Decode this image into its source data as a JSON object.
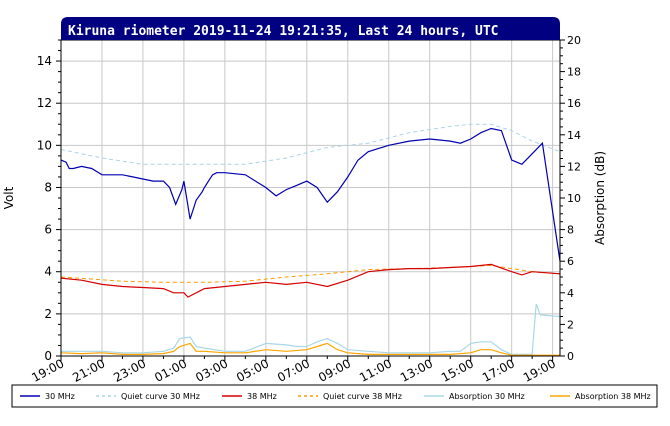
{
  "colors": {
    "title_bar": "#000080",
    "s30": "#0000b0",
    "q30": "#aad4e6",
    "s38": "#d40000",
    "q38": "#ff9900",
    "a30": "#a8d8e8",
    "a38": "#ffa500",
    "grid": "#c8c8c8"
  },
  "chart_data": {
    "type": "line",
    "title": "Kiruna riometer 2019-11-24 19:21:35, Last 24 hours, UTC",
    "ylabel": "Volt",
    "y2label": "Absorption (dB)",
    "ylim": [
      0,
      15
    ],
    "y2lim": [
      0,
      20
    ],
    "y_ticks": [
      "0",
      "2",
      "4",
      "6",
      "8",
      "10",
      "12",
      "14"
    ],
    "y2_ticks": [
      "0",
      "2",
      "4",
      "6",
      "8",
      "10",
      "12",
      "14",
      "16",
      "18",
      "20"
    ],
    "x_ticks": [
      "19:00",
      "21:00",
      "23:00",
      "01:00",
      "03:00",
      "05:00",
      "07:00",
      "09:00",
      "11:00",
      "13:00",
      "15:00",
      "17:00",
      "19:00"
    ],
    "xlim": [
      0,
      24.36
    ],
    "x_unit": "hours since 19:00",
    "grid": true,
    "legend_position": "bottom",
    "series": [
      {
        "name": "30 MHz",
        "color_key": "s30",
        "style": "solid",
        "axis": "left",
        "x": [
          0,
          0.25,
          0.4,
          0.6,
          1,
          1.5,
          2,
          2.5,
          3,
          3.5,
          4,
          4.5,
          5,
          5.3,
          5.6,
          5.9,
          6,
          6.3,
          6.6,
          6.9,
          7,
          7.2,
          7.4,
          7.6,
          8,
          9,
          10,
          10.5,
          11,
          11.5,
          12,
          12.5,
          13,
          13.5,
          14,
          14.5,
          15,
          16,
          17,
          18,
          19,
          19.5,
          20,
          20.5,
          21,
          21.5,
          22,
          22.5,
          23,
          23.5,
          24.36
        ],
        "values": [
          9.3,
          9.2,
          8.9,
          8.9,
          9.0,
          8.9,
          8.6,
          8.6,
          8.6,
          8.5,
          8.4,
          8.3,
          8.3,
          8.0,
          7.2,
          7.9,
          8.3,
          6.5,
          7.4,
          7.8,
          8.0,
          8.3,
          8.6,
          8.7,
          8.7,
          8.6,
          8.0,
          7.6,
          7.9,
          8.1,
          8.3,
          8.0,
          7.3,
          7.8,
          8.5,
          9.3,
          9.7,
          10.0,
          10.2,
          10.3,
          10.2,
          10.1,
          10.3,
          10.6,
          10.8,
          10.7,
          9.3,
          9.1,
          9.6,
          10.1,
          4.5
        ]
      },
      {
        "name": "Quiet curve 30 MHz",
        "color_key": "q30",
        "style": "dashed",
        "axis": "left",
        "x": [
          0,
          2,
          4,
          5,
          7,
          9,
          11,
          13,
          15,
          17,
          19,
          20,
          21,
          22,
          23,
          24.36
        ],
        "values": [
          9.8,
          9.4,
          9.1,
          9.1,
          9.1,
          9.1,
          9.4,
          9.9,
          10.1,
          10.6,
          10.9,
          11.0,
          11.0,
          10.7,
          10.2,
          9.7
        ]
      },
      {
        "name": "38 MHz",
        "color_key": "s38",
        "style": "solid",
        "axis": "left",
        "x": [
          0,
          1,
          2,
          3,
          4,
          5,
          5.5,
          5.8,
          6,
          6.2,
          7,
          9,
          10,
          11,
          12,
          13,
          14,
          15,
          16,
          17,
          18,
          19,
          20,
          21,
          22,
          22.5,
          23,
          24.36
        ],
        "values": [
          3.7,
          3.6,
          3.4,
          3.3,
          3.25,
          3.2,
          3.0,
          3.0,
          3.0,
          2.8,
          3.2,
          3.4,
          3.5,
          3.4,
          3.5,
          3.3,
          3.6,
          4.0,
          4.1,
          4.15,
          4.15,
          4.2,
          4.25,
          4.35,
          4.0,
          3.85,
          4.0,
          3.9
        ]
      },
      {
        "name": "Quiet curve 38 MHz",
        "color_key": "q38",
        "style": "dashed",
        "axis": "left",
        "x": [
          0,
          3,
          5,
          7,
          9,
          11,
          13,
          15,
          17,
          19,
          21,
          23,
          24.36
        ],
        "values": [
          3.75,
          3.55,
          3.5,
          3.5,
          3.55,
          3.75,
          3.9,
          4.1,
          4.15,
          4.2,
          4.3,
          4.0,
          3.9
        ]
      },
      {
        "name": "Absorption 30 MHz",
        "color_key": "a30",
        "style": "solid",
        "axis": "right",
        "x": [
          0,
          1,
          2,
          3,
          4,
          5,
          5.5,
          5.8,
          6.3,
          6.6,
          7,
          8,
          9,
          10,
          11,
          11.5,
          12,
          12.5,
          13,
          13.5,
          14,
          15,
          16,
          17,
          18,
          19,
          19.5,
          20,
          20.5,
          21,
          21.5,
          22,
          22.5,
          23,
          23.2,
          23.4,
          24.36
        ],
        "values": [
          0.3,
          0.3,
          0.3,
          0.2,
          0.2,
          0.3,
          0.5,
          1.1,
          1.2,
          0.6,
          0.5,
          0.3,
          0.3,
          0.8,
          0.7,
          0.6,
          0.6,
          0.9,
          1.1,
          0.8,
          0.4,
          0.3,
          0.2,
          0.2,
          0.2,
          0.3,
          0.3,
          0.8,
          0.9,
          0.9,
          0.4,
          0.1,
          0.1,
          0.1,
          3.3,
          2.6,
          2.5
        ]
      },
      {
        "name": "Absorption 38 MHz",
        "color_key": "a38",
        "style": "solid",
        "axis": "right",
        "x": [
          0,
          1,
          2,
          3,
          4,
          5,
          5.5,
          5.8,
          6.3,
          6.6,
          7,
          8,
          9,
          10,
          11,
          12,
          12.5,
          13,
          13.5,
          14,
          15,
          16,
          17,
          18,
          19,
          20,
          20.5,
          21,
          21.5,
          22,
          23,
          24.36
        ],
        "values": [
          0.2,
          0.15,
          0.2,
          0.1,
          0.1,
          0.15,
          0.3,
          0.6,
          0.8,
          0.3,
          0.3,
          0.2,
          0.2,
          0.4,
          0.3,
          0.4,
          0.6,
          0.8,
          0.4,
          0.2,
          0.1,
          0.1,
          0.1,
          0.1,
          0.1,
          0.2,
          0.4,
          0.4,
          0.2,
          0.05,
          0.05,
          0.05
        ]
      }
    ]
  }
}
